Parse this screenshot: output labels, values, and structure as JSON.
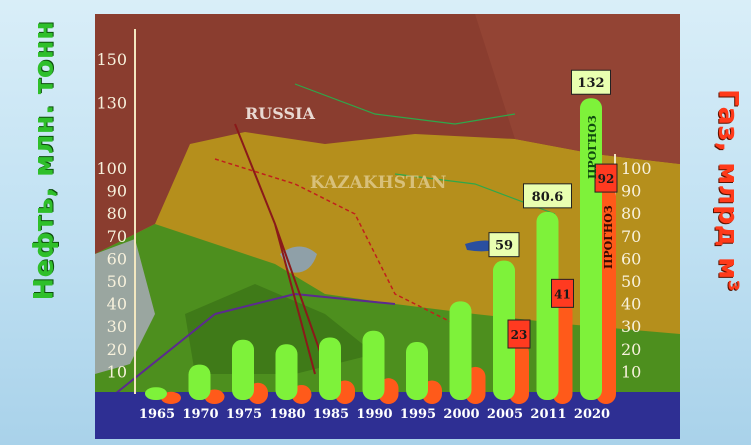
{
  "chart_data": {
    "type": "bar",
    "categories": [
      "1965",
      "1970",
      "1975",
      "1980",
      "1985",
      "1990",
      "1995",
      "2000",
      "2005",
      "2011",
      "2020"
    ],
    "series": [
      {
        "values": [
          3,
          13,
          24,
          22,
          25,
          28,
          23,
          41,
          59,
          80.6,
          132
        ],
        "color": "#7ef23a"
      },
      {
        "values": [
          1,
          2,
          5,
          4,
          6,
          7,
          6,
          12,
          23,
          41,
          92
        ],
        "color": "#ff5a1a"
      }
    ],
    "left_axis_label": "Нефть, млн. тонн",
    "right_axis_label": "Газ, млрд м³",
    "left_ticks": [
      "150",
      "130",
      "100",
      "90",
      "80",
      "70",
      "60",
      "50",
      "40",
      "30",
      "20",
      "10"
    ],
    "right_ticks": [
      "100",
      "90",
      "80",
      "70",
      "60",
      "50",
      "40",
      "30",
      "20",
      "10"
    ],
    "data_labels_left": [
      {
        "index": 8,
        "text": "59"
      },
      {
        "index": 9,
        "text": "80.6"
      },
      {
        "index": 10,
        "text": "132"
      }
    ],
    "data_labels_right": [
      {
        "index": 8,
        "text": "23"
      },
      {
        "index": 9,
        "text": "41"
      },
      {
        "index": 10,
        "text": "92"
      }
    ],
    "forecast_label": "ПРОГНОЗ",
    "map_labels": [
      "RUSSIA",
      "KAZAKHSTAN"
    ]
  }
}
